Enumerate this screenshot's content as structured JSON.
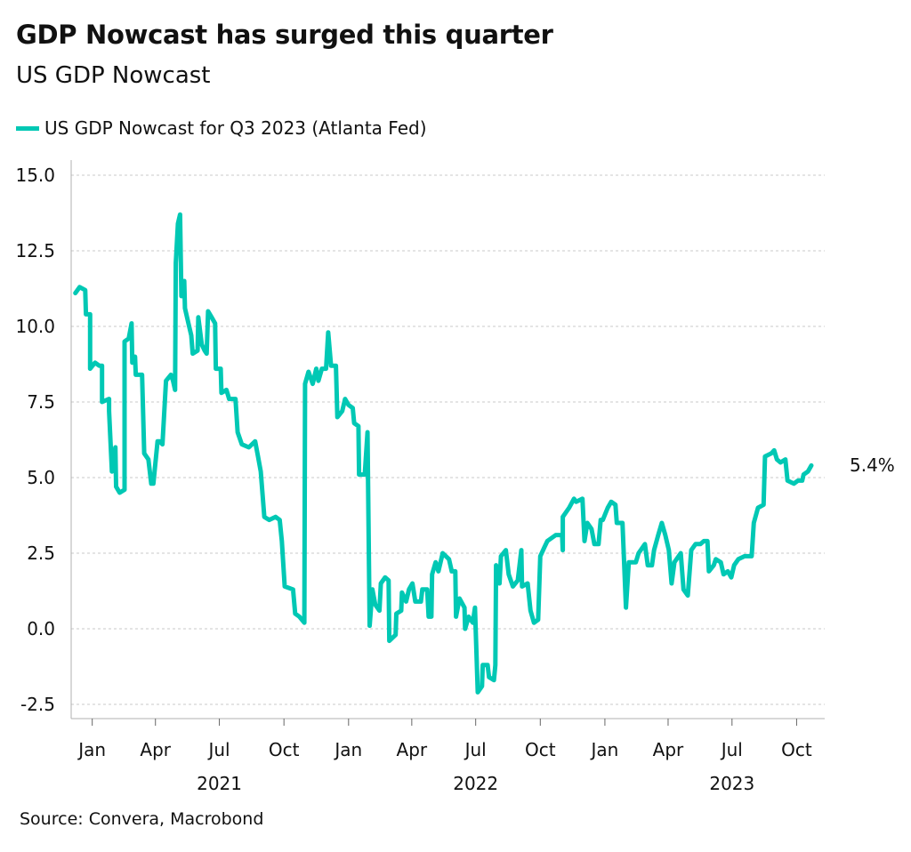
{
  "title": "GDP Nowcast has surged this quarter",
  "subtitle": "US GDP Nowcast",
  "source": "Source: Convera, Macrobond",
  "colors": {
    "series": "#00C8B4",
    "grid": "#c8c8c8",
    "axis": "#b0b0b0"
  },
  "chart_data": {
    "type": "line",
    "title": "GDP Nowcast has surged this quarter",
    "subtitle": "US GDP Nowcast",
    "legend_position": "top-left",
    "grid": "horizontal dotted",
    "ylim": [
      -2.5,
      15.0
    ],
    "xlim": [
      "2020-12-02",
      "2023-11-10"
    ],
    "y_ticks": [
      "15.0",
      "12.5",
      "10.0",
      "7.5",
      "5.0",
      "2.5",
      "0.0",
      "-2.5"
    ],
    "y_tick_values": [
      15,
      12.5,
      10,
      7.5,
      5,
      2.5,
      0,
      -2.5
    ],
    "x_ticks": [
      {
        "date": "2021-01-01",
        "label": "Jan"
      },
      {
        "date": "2021-04-01",
        "label": "Apr"
      },
      {
        "date": "2021-07-01",
        "label": "Jul"
      },
      {
        "date": "2021-10-01",
        "label": "Oct"
      },
      {
        "date": "2022-01-01",
        "label": "Jan"
      },
      {
        "date": "2022-04-01",
        "label": "Apr"
      },
      {
        "date": "2022-07-01",
        "label": "Jul"
      },
      {
        "date": "2022-10-01",
        "label": "Oct"
      },
      {
        "date": "2023-01-01",
        "label": "Jan"
      },
      {
        "date": "2023-04-01",
        "label": "Apr"
      },
      {
        "date": "2023-07-01",
        "label": "Jul"
      },
      {
        "date": "2023-10-01",
        "label": "Oct"
      }
    ],
    "year_labels": [
      {
        "date": "2021-07-01",
        "label": "2021"
      },
      {
        "date": "2022-07-01",
        "label": "2022"
      },
      {
        "date": "2023-07-01",
        "label": "2023"
      }
    ],
    "end_label": "5.4%",
    "series": [
      {
        "name": "US GDP Nowcast for Q3 2023 (Atlanta Fed)",
        "points": [
          [
            "2020-12-08",
            11.1
          ],
          [
            "2020-12-14",
            11.3
          ],
          [
            "2020-12-22",
            11.2
          ],
          [
            "2020-12-23",
            10.4
          ],
          [
            "2020-12-29",
            10.4
          ],
          [
            "2020-12-29",
            8.6
          ],
          [
            "2021-01-05",
            8.8
          ],
          [
            "2021-01-11",
            8.7
          ],
          [
            "2021-01-15",
            8.7
          ],
          [
            "2021-01-15",
            7.5
          ],
          [
            "2021-01-25",
            7.6
          ],
          [
            "2021-01-25",
            7.2
          ],
          [
            "2021-01-29",
            5.2
          ],
          [
            "2021-02-03",
            6.0
          ],
          [
            "2021-02-04",
            4.7
          ],
          [
            "2021-02-09",
            4.5
          ],
          [
            "2021-02-16",
            4.6
          ],
          [
            "2021-02-16",
            9.5
          ],
          [
            "2021-02-22",
            9.6
          ],
          [
            "2021-02-26",
            10.1
          ],
          [
            "2021-02-27",
            8.8
          ],
          [
            "2021-03-03",
            9.0
          ],
          [
            "2021-03-04",
            8.4
          ],
          [
            "2021-03-13",
            8.4
          ],
          [
            "2021-03-16",
            5.8
          ],
          [
            "2021-03-22",
            5.6
          ],
          [
            "2021-03-26",
            4.8
          ],
          [
            "2021-03-29",
            4.8
          ],
          [
            "2021-04-04",
            6.2
          ],
          [
            "2021-04-07",
            6.2
          ],
          [
            "2021-04-11",
            6.1
          ],
          [
            "2021-04-16",
            8.2
          ],
          [
            "2021-04-23",
            8.4
          ],
          [
            "2021-04-26",
            8.2
          ],
          [
            "2021-04-29",
            7.9
          ],
          [
            "2021-04-30",
            12.1
          ],
          [
            "2021-05-03",
            13.4
          ],
          [
            "2021-05-06",
            13.7
          ],
          [
            "2021-05-08",
            11.0
          ],
          [
            "2021-05-12",
            11.5
          ],
          [
            "2021-05-13",
            10.6
          ],
          [
            "2021-05-18",
            10.1
          ],
          [
            "2021-05-22",
            9.7
          ],
          [
            "2021-05-24",
            9.1
          ],
          [
            "2021-05-31",
            9.2
          ],
          [
            "2021-06-01",
            10.3
          ],
          [
            "2021-06-06",
            9.4
          ],
          [
            "2021-06-10",
            9.2
          ],
          [
            "2021-06-13",
            9.1
          ],
          [
            "2021-06-15",
            10.5
          ],
          [
            "2021-06-20",
            10.3
          ],
          [
            "2021-06-25",
            10.1
          ],
          [
            "2021-06-26",
            8.6
          ],
          [
            "2021-07-03",
            8.6
          ],
          [
            "2021-07-04",
            7.8
          ],
          [
            "2021-07-11",
            7.9
          ],
          [
            "2021-07-15",
            7.6
          ],
          [
            "2021-07-24",
            7.6
          ],
          [
            "2021-07-27",
            6.5
          ],
          [
            "2021-08-02",
            6.1
          ],
          [
            "2021-08-12",
            6.0
          ],
          [
            "2021-08-21",
            6.2
          ],
          [
            "2021-08-25",
            5.7
          ],
          [
            "2021-08-29",
            5.2
          ],
          [
            "2021-09-03",
            3.7
          ],
          [
            "2021-09-10",
            3.6
          ],
          [
            "2021-09-19",
            3.7
          ],
          [
            "2021-09-25",
            3.6
          ],
          [
            "2021-09-28",
            2.9
          ],
          [
            "2021-10-02",
            1.4
          ],
          [
            "2021-10-14",
            1.3
          ],
          [
            "2021-10-17",
            0.5
          ],
          [
            "2021-10-23",
            0.4
          ],
          [
            "2021-10-30",
            0.2
          ],
          [
            "2021-10-31",
            8.1
          ],
          [
            "2021-11-05",
            8.5
          ],
          [
            "2021-11-11",
            8.1
          ],
          [
            "2021-11-16",
            8.6
          ],
          [
            "2021-11-19",
            8.2
          ],
          [
            "2021-11-24",
            8.6
          ],
          [
            "2021-11-30",
            8.6
          ],
          [
            "2021-12-03",
            9.8
          ],
          [
            "2021-12-07",
            8.7
          ],
          [
            "2021-12-14",
            8.7
          ],
          [
            "2021-12-16",
            7.0
          ],
          [
            "2021-12-23",
            7.2
          ],
          [
            "2021-12-27",
            7.6
          ],
          [
            "2022-01-01",
            7.4
          ],
          [
            "2022-01-07",
            7.3
          ],
          [
            "2022-01-09",
            6.8
          ],
          [
            "2022-01-15",
            6.7
          ],
          [
            "2022-01-16",
            5.1
          ],
          [
            "2022-01-24",
            5.1
          ],
          [
            "2022-01-28",
            6.5
          ],
          [
            "2022-01-31",
            0.1
          ],
          [
            "2022-02-04",
            1.3
          ],
          [
            "2022-02-08",
            0.8
          ],
          [
            "2022-02-14",
            0.6
          ],
          [
            "2022-02-16",
            1.5
          ],
          [
            "2022-02-22",
            1.7
          ],
          [
            "2022-02-27",
            1.6
          ],
          [
            "2022-02-28",
            -0.4
          ],
          [
            "2022-03-09",
            -0.2
          ],
          [
            "2022-03-10",
            0.5
          ],
          [
            "2022-03-17",
            0.6
          ],
          [
            "2022-03-18",
            1.2
          ],
          [
            "2022-03-24",
            0.9
          ],
          [
            "2022-03-28",
            1.3
          ],
          [
            "2022-04-02",
            1.5
          ],
          [
            "2022-04-06",
            0.9
          ],
          [
            "2022-04-14",
            0.9
          ],
          [
            "2022-04-16",
            1.3
          ],
          [
            "2022-04-23",
            1.3
          ],
          [
            "2022-04-25",
            0.4
          ],
          [
            "2022-04-29",
            0.4
          ],
          [
            "2022-04-30",
            1.8
          ],
          [
            "2022-05-05",
            2.2
          ],
          [
            "2022-05-09",
            1.9
          ],
          [
            "2022-05-15",
            2.5
          ],
          [
            "2022-05-24",
            2.3
          ],
          [
            "2022-05-28",
            1.9
          ],
          [
            "2022-06-02",
            1.9
          ],
          [
            "2022-06-03",
            0.4
          ],
          [
            "2022-06-08",
            1.0
          ],
          [
            "2022-06-15",
            0.7
          ],
          [
            "2022-06-16",
            0.0
          ],
          [
            "2022-06-21",
            0.4
          ],
          [
            "2022-06-27",
            0.2
          ],
          [
            "2022-06-30",
            0.7
          ],
          [
            "2022-07-04",
            -2.1
          ],
          [
            "2022-07-10",
            -1.9
          ],
          [
            "2022-07-11",
            -1.2
          ],
          [
            "2022-07-18",
            -1.2
          ],
          [
            "2022-07-20",
            -1.6
          ],
          [
            "2022-07-27",
            -1.7
          ],
          [
            "2022-07-29",
            -1.2
          ],
          [
            "2022-07-30",
            2.1
          ],
          [
            "2022-08-04",
            1.5
          ],
          [
            "2022-08-06",
            2.4
          ],
          [
            "2022-08-13",
            2.6
          ],
          [
            "2022-08-17",
            1.8
          ],
          [
            "2022-08-23",
            1.4
          ],
          [
            "2022-08-30",
            1.6
          ],
          [
            "2022-09-04",
            2.6
          ],
          [
            "2022-09-05",
            1.4
          ],
          [
            "2022-09-13",
            1.5
          ],
          [
            "2022-09-17",
            0.6
          ],
          [
            "2022-09-22",
            0.2
          ],
          [
            "2022-09-28",
            0.3
          ],
          [
            "2022-10-01",
            2.4
          ],
          [
            "2022-10-07",
            2.7
          ],
          [
            "2022-10-11",
            2.9
          ],
          [
            "2022-10-23",
            3.1
          ],
          [
            "2022-11-01",
            3.1
          ],
          [
            "2022-11-02",
            2.6
          ],
          [
            "2022-11-02",
            3.7
          ],
          [
            "2022-11-11",
            4.0
          ],
          [
            "2022-11-18",
            4.3
          ],
          [
            "2022-11-21",
            4.2
          ],
          [
            "2022-11-30",
            4.3
          ],
          [
            "2022-12-03",
            2.9
          ],
          [
            "2022-12-07",
            3.5
          ],
          [
            "2022-12-13",
            3.3
          ],
          [
            "2022-12-17",
            2.8
          ],
          [
            "2022-12-23",
            2.8
          ],
          [
            "2022-12-26",
            3.6
          ],
          [
            "2022-12-29",
            3.6
          ],
          [
            "2023-01-05",
            4.0
          ],
          [
            "2023-01-10",
            4.2
          ],
          [
            "2023-01-16",
            4.1
          ],
          [
            "2023-01-18",
            3.5
          ],
          [
            "2023-01-26",
            3.5
          ],
          [
            "2023-01-31",
            0.7
          ],
          [
            "2023-02-04",
            2.2
          ],
          [
            "2023-02-14",
            2.2
          ],
          [
            "2023-02-18",
            2.5
          ],
          [
            "2023-02-27",
            2.8
          ],
          [
            "2023-03-03",
            2.1
          ],
          [
            "2023-03-09",
            2.1
          ],
          [
            "2023-03-12",
            2.6
          ],
          [
            "2023-03-18",
            3.1
          ],
          [
            "2023-03-23",
            3.5
          ],
          [
            "2023-03-28",
            3.1
          ],
          [
            "2023-04-02",
            2.6
          ],
          [
            "2023-04-06",
            1.5
          ],
          [
            "2023-04-10",
            2.2
          ],
          [
            "2023-04-19",
            2.5
          ],
          [
            "2023-04-23",
            1.3
          ],
          [
            "2023-04-29",
            1.1
          ],
          [
            "2023-05-04",
            2.6
          ],
          [
            "2023-05-10",
            2.8
          ],
          [
            "2023-05-17",
            2.8
          ],
          [
            "2023-05-22",
            2.9
          ],
          [
            "2023-05-27",
            2.9
          ],
          [
            "2023-05-29",
            1.9
          ],
          [
            "2023-06-05",
            2.1
          ],
          [
            "2023-06-08",
            2.3
          ],
          [
            "2023-06-15",
            2.2
          ],
          [
            "2023-06-19",
            1.8
          ],
          [
            "2023-06-25",
            1.9
          ],
          [
            "2023-06-30",
            1.7
          ],
          [
            "2023-07-04",
            2.1
          ],
          [
            "2023-07-10",
            2.3
          ],
          [
            "2023-07-19",
            2.4
          ],
          [
            "2023-07-29",
            2.4
          ],
          [
            "2023-08-01",
            3.5
          ],
          [
            "2023-08-07",
            4.0
          ],
          [
            "2023-08-15",
            4.1
          ],
          [
            "2023-08-17",
            5.7
          ],
          [
            "2023-08-26",
            5.8
          ],
          [
            "2023-08-30",
            5.9
          ],
          [
            "2023-09-03",
            5.6
          ],
          [
            "2023-09-08",
            5.5
          ],
          [
            "2023-09-15",
            5.6
          ],
          [
            "2023-09-18",
            4.9
          ],
          [
            "2023-09-27",
            4.8
          ],
          [
            "2023-10-03",
            4.9
          ],
          [
            "2023-10-09",
            4.9
          ],
          [
            "2023-10-11",
            5.1
          ],
          [
            "2023-10-17",
            5.2
          ],
          [
            "2023-10-22",
            5.4
          ]
        ]
      }
    ]
  }
}
